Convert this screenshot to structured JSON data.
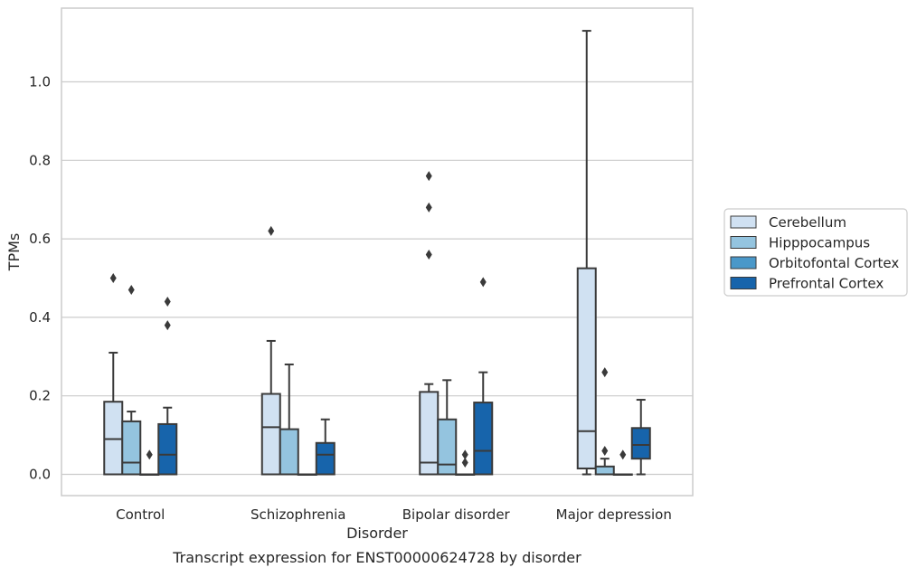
{
  "chart_data": {
    "type": "box",
    "xlabel": "Disorder",
    "ylabel": "TPMs",
    "caption": "Transcript expression for ENST00000624728 by disorder",
    "categories": [
      "Control",
      "Schizophrenia",
      "Bipolar disorder",
      "Major depression"
    ],
    "ylim": [
      -0.055,
      1.19
    ],
    "yticks": [
      "0.0",
      "0.2",
      "0.4",
      "0.6",
      "0.8",
      "1.0"
    ],
    "grid": "horizontal",
    "legend_position": "right",
    "series": [
      {
        "name": "Cerebellum",
        "color": "#d0e1f2",
        "boxes": [
          {
            "q1": 0.0,
            "median": 0.09,
            "q3": 0.185,
            "whisker_low": 0.0,
            "whisker_high": 0.31,
            "outliers": [
              0.5
            ]
          },
          {
            "q1": 0.0,
            "median": 0.12,
            "q3": 0.205,
            "whisker_low": 0.0,
            "whisker_high": 0.34,
            "outliers": [
              0.62
            ]
          },
          {
            "q1": 0.0,
            "median": 0.03,
            "q3": 0.21,
            "whisker_low": 0.0,
            "whisker_high": 0.23,
            "outliers": [
              0.76,
              0.68,
              0.56
            ]
          },
          {
            "q1": 0.015,
            "median": 0.11,
            "q3": 0.525,
            "whisker_low": 0.0,
            "whisker_high": 1.13,
            "outliers": []
          }
        ]
      },
      {
        "name": "Hipppocampus",
        "color": "#94c4df",
        "boxes": [
          {
            "q1": 0.0,
            "median": 0.03,
            "q3": 0.135,
            "whisker_low": 0.0,
            "whisker_high": 0.16,
            "outliers": [
              0.47
            ]
          },
          {
            "q1": 0.0,
            "median": 0.0,
            "q3": 0.115,
            "whisker_low": 0.0,
            "whisker_high": 0.28,
            "outliers": []
          },
          {
            "q1": 0.0,
            "median": 0.025,
            "q3": 0.14,
            "whisker_low": 0.0,
            "whisker_high": 0.24,
            "outliers": []
          },
          {
            "q1": 0.0,
            "median": 0.0,
            "q3": 0.02,
            "whisker_low": 0.0,
            "whisker_high": 0.04,
            "outliers": [
              0.06,
              0.26
            ]
          }
        ]
      },
      {
        "name": "Orbitofontal Cortex",
        "color": "#4a98c9",
        "boxes": [
          {
            "q1": 0.0,
            "median": 0.0,
            "q3": 0.0,
            "whisker_low": 0.0,
            "whisker_high": 0.0,
            "outliers": [
              0.05
            ]
          },
          {
            "q1": 0.0,
            "median": 0.0,
            "q3": 0.0,
            "whisker_low": 0.0,
            "whisker_high": 0.0,
            "outliers": []
          },
          {
            "q1": 0.0,
            "median": 0.0,
            "q3": 0.0,
            "whisker_low": 0.0,
            "whisker_high": 0.0,
            "outliers": [
              0.05,
              0.03
            ]
          },
          {
            "q1": 0.0,
            "median": 0.0,
            "q3": 0.0,
            "whisker_low": 0.0,
            "whisker_high": 0.0,
            "outliers": [
              0.05
            ]
          }
        ]
      },
      {
        "name": "Prefrontal Cortex",
        "color": "#1764ab",
        "boxes": [
          {
            "q1": 0.0,
            "median": 0.05,
            "q3": 0.128,
            "whisker_low": 0.0,
            "whisker_high": 0.17,
            "outliers": [
              0.44,
              0.38
            ]
          },
          {
            "q1": 0.0,
            "median": 0.05,
            "q3": 0.08,
            "whisker_low": 0.0,
            "whisker_high": 0.14,
            "outliers": []
          },
          {
            "q1": 0.0,
            "median": 0.06,
            "q3": 0.183,
            "whisker_low": 0.0,
            "whisker_high": 0.26,
            "outliers": [
              0.49
            ]
          },
          {
            "q1": 0.04,
            "median": 0.075,
            "q3": 0.118,
            "whisker_low": 0.0,
            "whisker_high": 0.19,
            "outliers": []
          }
        ]
      }
    ]
  }
}
